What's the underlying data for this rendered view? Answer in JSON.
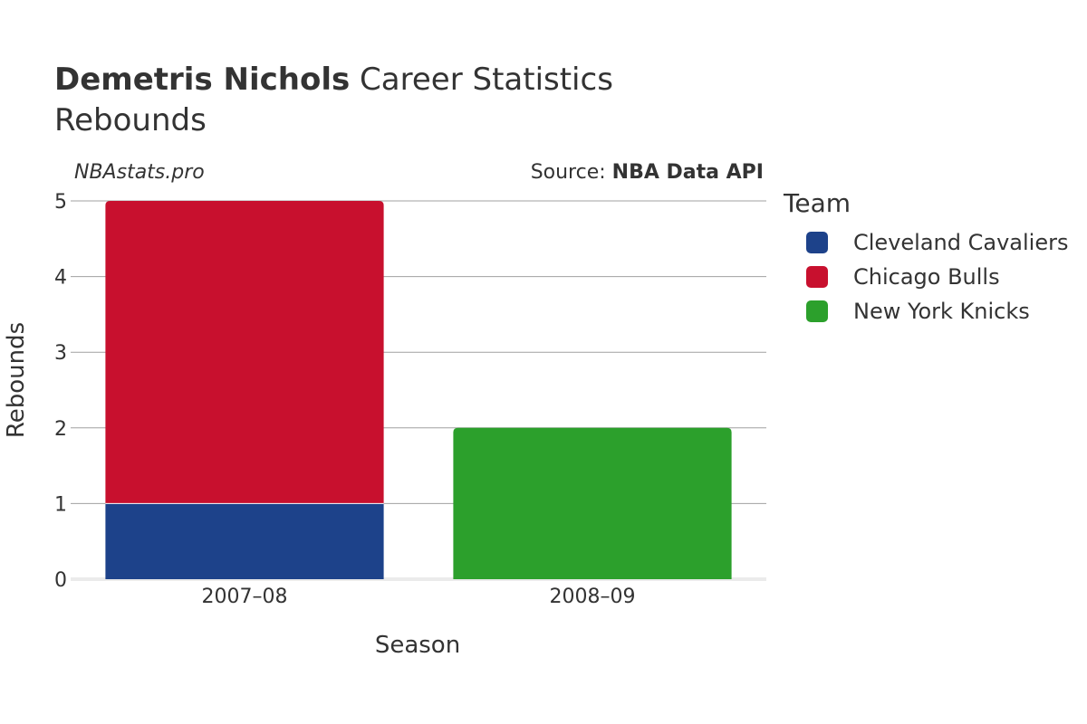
{
  "header": {
    "title_bold": "Demetris Nichols",
    "title_rest": " Career Statistics",
    "subtitle": "Rebounds",
    "watermark": "NBAstats.pro",
    "source_prefix": "Source: ",
    "source_name": "NBA Data API"
  },
  "legend": {
    "title": "Team",
    "items": [
      {
        "label": "Cleveland Cavaliers",
        "color": "#1d428a"
      },
      {
        "label": "Chicago Bulls",
        "color": "#c8102e"
      },
      {
        "label": "New York Knicks",
        "color": "#2ca02c"
      }
    ]
  },
  "chart_data": {
    "type": "bar",
    "stacked": true,
    "categories": [
      "2007–08",
      "2008–09"
    ],
    "series": [
      {
        "name": "Cleveland Cavaliers",
        "color": "#1d428a",
        "values": [
          1,
          0
        ]
      },
      {
        "name": "Chicago Bulls",
        "color": "#c8102e",
        "values": [
          4,
          0
        ]
      },
      {
        "name": "New York Knicks",
        "color": "#2ca02c",
        "values": [
          0,
          2
        ]
      }
    ],
    "xlabel": "Season",
    "ylabel": "Rebounds",
    "ylim": [
      0,
      5
    ],
    "yticks": [
      0,
      1,
      2,
      3,
      4,
      5
    ],
    "grid": true,
    "legend_position": "right"
  }
}
